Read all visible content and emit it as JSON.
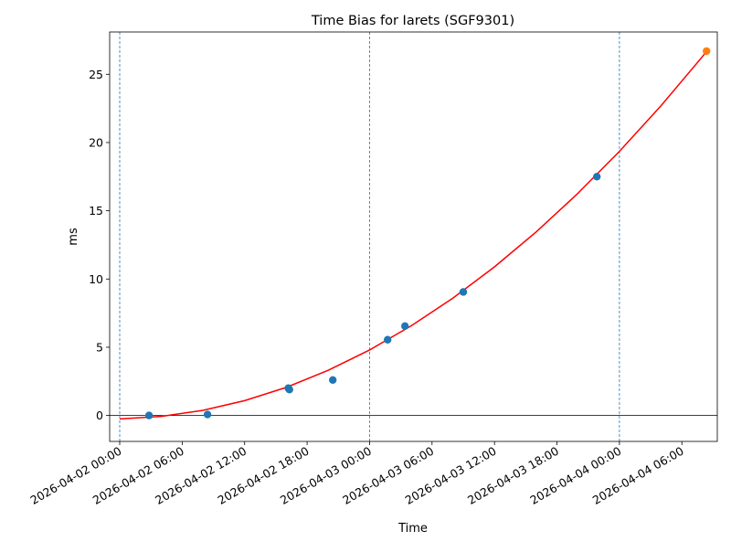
{
  "chart_data": {
    "type": "scatter",
    "title": "Time Bias for Iarets (SGF9301)",
    "x_label": "Time",
    "y_label": "ms",
    "xlim": [
      "2026-04-01 23:02",
      "2026-04-04 09:24"
    ],
    "ylim": [
      -1.9,
      28.1
    ],
    "xticks": [
      "2026-04-02 00:00",
      "2026-04-02 06:00",
      "2026-04-02 12:00",
      "2026-04-02 18:00",
      "2026-04-03 00:00",
      "2026-04-03 06:00",
      "2026-04-03 12:00",
      "2026-04-03 18:00",
      "2026-04-04 00:00",
      "2026-04-04 06:00"
    ],
    "yticks": [
      0,
      5,
      10,
      15,
      20,
      25
    ],
    "vlines": [
      "2026-04-02 00:00",
      "2026-04-03 00:00",
      "2026-04-04 00:00"
    ],
    "vline_color": "#1f77b4",
    "hline": 0,
    "hline_color": "#000000",
    "series": [
      {
        "style": "line",
        "color": "#ff0000",
        "x": [
          "2026-04-02 00:00",
          "2026-04-02 04:00",
          "2026-04-02 08:00",
          "2026-04-02 12:00",
          "2026-04-02 16:00",
          "2026-04-02 20:00",
          "2026-04-03 00:00",
          "2026-04-03 04:00",
          "2026-04-03 08:00",
          "2026-04-03 12:00",
          "2026-04-03 16:00",
          "2026-04-03 20:00",
          "2026-04-04 00:00",
          "2026-04-04 04:00",
          "2026-04-04 08:00",
          "2026-04-04 08:24"
        ],
        "values": [
          -0.25,
          -0.07,
          0.38,
          1.09,
          2.06,
          3.3,
          4.8,
          6.57,
          8.6,
          10.89,
          13.45,
          16.27,
          19.35,
          22.7,
          26.32,
          26.73
        ]
      },
      {
        "style": "points",
        "color": "#1f77b4",
        "x": [
          "2026-04-02 02:49",
          "2026-04-02 08:26",
          "2026-04-02 16:12",
          "2026-04-02 16:18",
          "2026-04-02 20:28",
          "2026-04-03 01:44",
          "2026-04-03 03:24",
          "2026-04-03 09:00",
          "2026-04-03 21:50"
        ],
        "values": [
          0.0,
          0.07,
          2.0,
          1.9,
          2.6,
          5.55,
          6.55,
          9.05,
          17.5
        ]
      },
      {
        "style": "points",
        "color": "#ff7f0e",
        "x": [
          "2026-04-04 08:22"
        ],
        "values": [
          26.7
        ]
      }
    ]
  }
}
